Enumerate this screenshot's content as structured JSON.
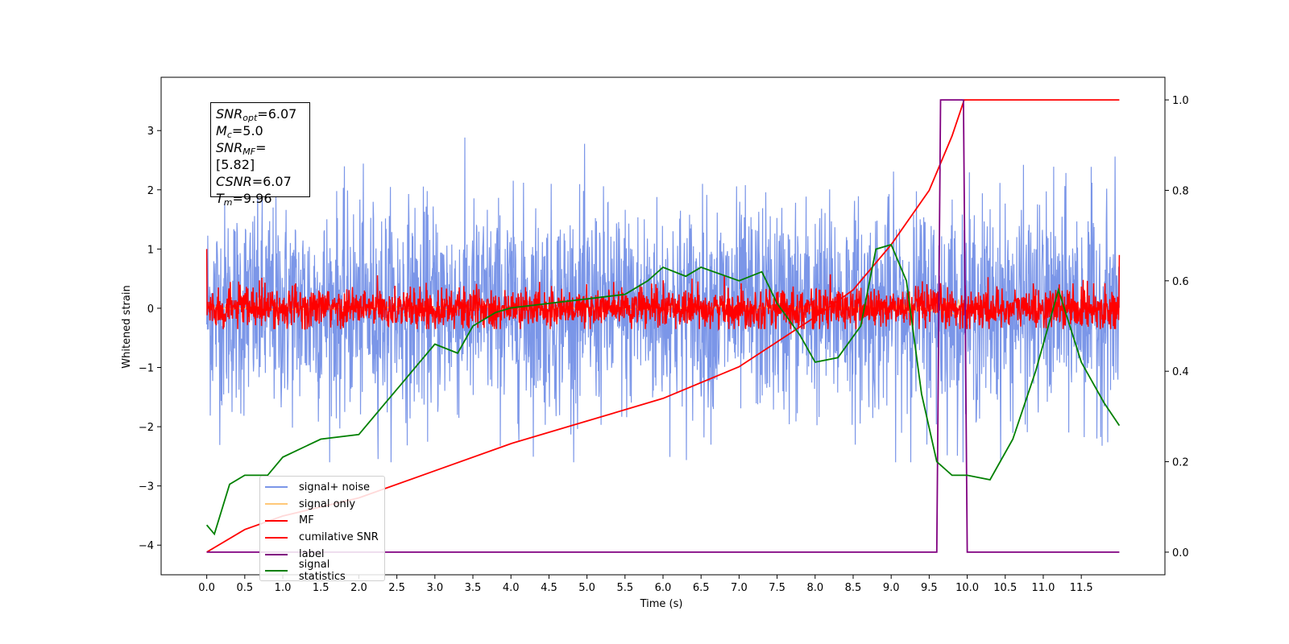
{
  "chart_data": {
    "type": "line",
    "xlabel": "Time (s)",
    "ylabel": "Whitened strain",
    "xlim": [
      -0.6,
      12.6
    ],
    "ylim": [
      -4.5,
      3.9
    ],
    "y2lim": [
      -0.05,
      1.05
    ],
    "x_ticks": [
      "0.0",
      "0.5",
      "1.0",
      "1.5",
      "2.0",
      "2.5",
      "3.0",
      "3.5",
      "4.0",
      "4.5",
      "5.0",
      "5.5",
      "6.0",
      "6.5",
      "7.0",
      "7.5",
      "8.0",
      "8.5",
      "9.0",
      "9.5",
      "10.0",
      "10.5",
      "11.0",
      "11.5"
    ],
    "y_ticks": [
      "3",
      "2",
      "1",
      "0",
      "−1",
      "−2",
      "−3",
      "−4"
    ],
    "y2_ticks": [
      "1.0",
      "0.8",
      "0.6",
      "0.4",
      "0.2",
      "0.0"
    ],
    "annotation": {
      "snr_opt": "=6.07",
      "mc": "=5.0",
      "snr_mf": "=[5.82]",
      "csnr": "=6.07",
      "tm": "=9.96"
    },
    "series": [
      {
        "name": "signal+ noise",
        "color": "#7b96e8",
        "description": "noisy whitened strain oscillating roughly between -2.5 and 3.5, spanning 0 to 12 s"
      },
      {
        "name": "signal only",
        "color": "#ffc878"
      },
      {
        "name": "MF",
        "color": "#ff0000"
      },
      {
        "name": "cumilative SNR",
        "color": "#ff0000",
        "axis": "right",
        "x": [
          0.0,
          0.5,
          1.0,
          2.0,
          3.0,
          4.0,
          5.0,
          6.0,
          7.0,
          8.0,
          8.5,
          9.0,
          9.5,
          9.8,
          9.96,
          10.0,
          11.0,
          12.0
        ],
        "y": [
          0.0,
          0.05,
          0.08,
          0.12,
          0.18,
          0.24,
          0.29,
          0.34,
          0.41,
          0.52,
          0.58,
          0.68,
          0.8,
          0.92,
          1.0,
          1.0,
          1.0,
          1.0
        ]
      },
      {
        "name": "label",
        "color": "#800080",
        "axis": "right",
        "x": [
          0.0,
          9.6,
          9.65,
          9.95,
          10.0,
          12.0
        ],
        "y": [
          0.0,
          0.0,
          1.0,
          1.0,
          0.0,
          0.0
        ]
      },
      {
        "name": "signal statistics",
        "color": "#008000",
        "axis": "right",
        "x": [
          0.0,
          0.1,
          0.3,
          0.5,
          0.8,
          1.0,
          1.5,
          2.0,
          2.3,
          2.6,
          2.8,
          3.0,
          3.3,
          3.5,
          3.8,
          4.0,
          4.5,
          5.0,
          5.5,
          5.8,
          6.0,
          6.3,
          6.5,
          7.0,
          7.3,
          7.5,
          7.8,
          8.0,
          8.3,
          8.6,
          8.8,
          9.0,
          9.2,
          9.4,
          9.6,
          9.8,
          10.0,
          10.3,
          10.6,
          10.9,
          11.2,
          11.5,
          11.8,
          12.0
        ],
        "y": [
          0.06,
          0.04,
          0.15,
          0.17,
          0.17,
          0.21,
          0.25,
          0.26,
          0.32,
          0.38,
          0.42,
          0.46,
          0.44,
          0.5,
          0.53,
          0.54,
          0.55,
          0.56,
          0.57,
          0.6,
          0.63,
          0.61,
          0.63,
          0.6,
          0.62,
          0.55,
          0.48,
          0.42,
          0.43,
          0.5,
          0.67,
          0.68,
          0.6,
          0.35,
          0.2,
          0.17,
          0.17,
          0.16,
          0.25,
          0.4,
          0.58,
          0.42,
          0.33,
          0.28
        ]
      }
    ]
  }
}
